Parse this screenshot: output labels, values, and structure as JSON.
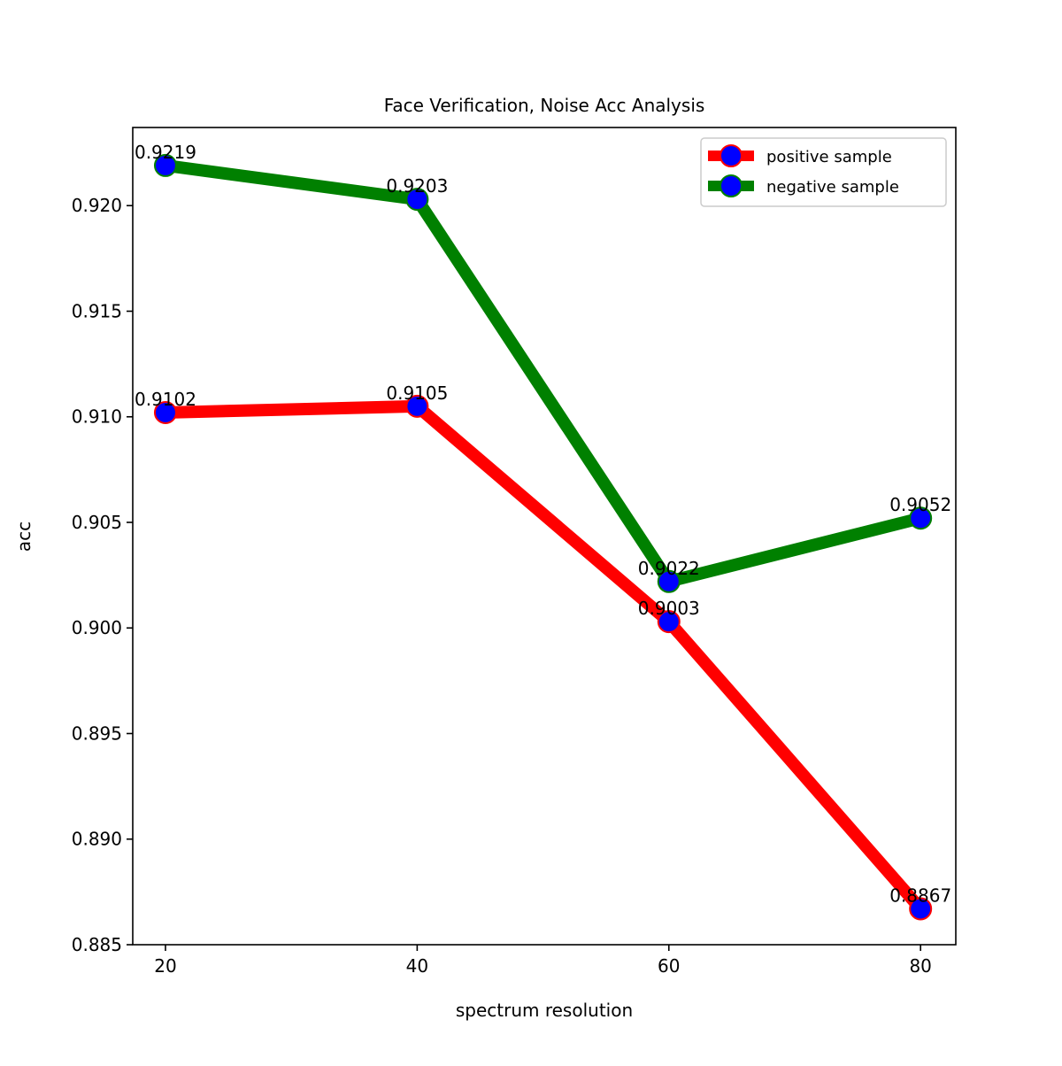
{
  "chart_data": {
    "type": "line",
    "title": "Face Verification, Noise Acc Analysis",
    "xlabel": "spectrum resolution",
    "ylabel": "acc",
    "x": [
      20,
      40,
      60,
      80
    ],
    "x_ticks": [
      "20",
      "40",
      "60",
      "80"
    ],
    "xlim": [
      17.4,
      82.8
    ],
    "ylim": [
      0.885,
      0.9237
    ],
    "y_ticks": [
      "0.885",
      "0.890",
      "0.895",
      "0.900",
      "0.905",
      "0.910",
      "0.915",
      "0.920"
    ],
    "y_tick_values": [
      0.885,
      0.89,
      0.895,
      0.9,
      0.905,
      0.91,
      0.915,
      0.92
    ],
    "grid": false,
    "legend_position": "top-right",
    "marker_color": "#0000ff",
    "series": [
      {
        "name": "positive sample",
        "color": "#ff0000",
        "values": [
          0.9102,
          0.9105,
          0.9003,
          0.8867
        ],
        "labels": [
          "0.9102",
          "0.9105",
          "0.9003",
          "0.8867"
        ]
      },
      {
        "name": "negative sample",
        "color": "#008000",
        "values": [
          0.9219,
          0.9203,
          0.9022,
          0.9052
        ],
        "labels": [
          "0.9219",
          "0.9203",
          "0.9022",
          "0.9052"
        ]
      }
    ]
  }
}
